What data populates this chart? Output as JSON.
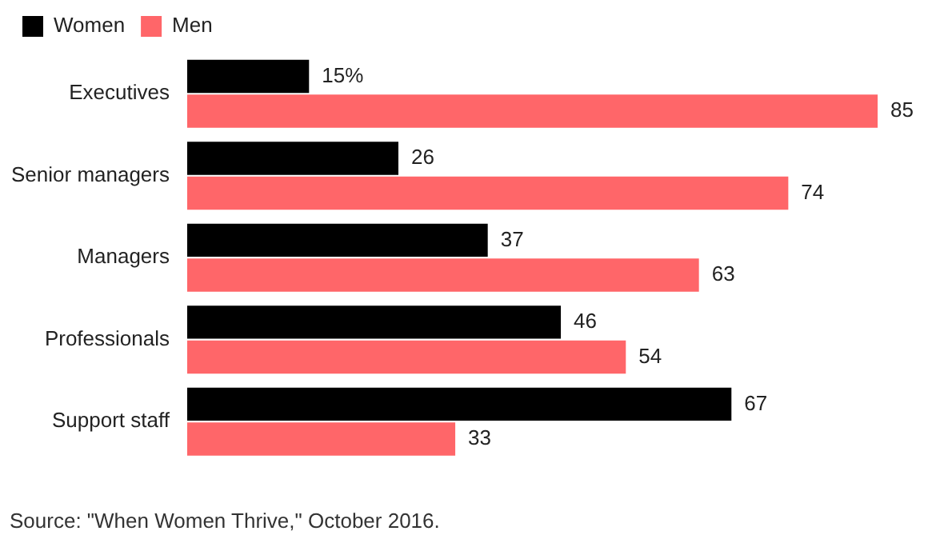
{
  "chart_data": {
    "type": "bar",
    "orientation": "horizontal",
    "categories": [
      "Executives",
      "Senior managers",
      "Managers",
      "Professionals",
      "Support staff"
    ],
    "series": [
      {
        "name": "Women",
        "color": "#000000",
        "values": [
          15,
          26,
          37,
          46,
          67
        ],
        "value_labels": [
          "15%",
          "26",
          "37",
          "46",
          "67"
        ]
      },
      {
        "name": "Men",
        "color": "#ff6669",
        "values": [
          85,
          74,
          63,
          54,
          33
        ],
        "value_labels": [
          "85",
          "74",
          "63",
          "54",
          "33"
        ]
      }
    ],
    "legend": "top left",
    "annotations": [
      "Source: \"When Women Thrive,\" October 2016."
    ]
  }
}
